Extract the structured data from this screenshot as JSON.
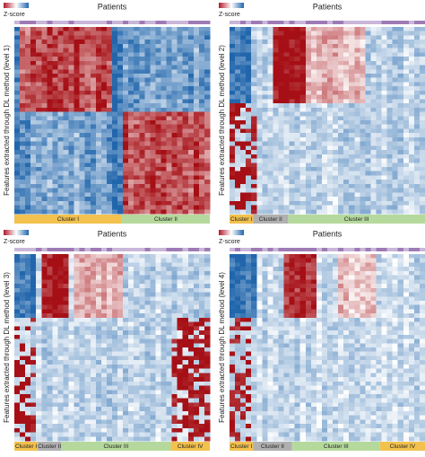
{
  "panels": [
    {
      "title": "Patients",
      "legend_label": "Z-score",
      "y_label": "Features extracted through DL method (level 1)",
      "clusters": [
        "Cluster I",
        "Cluster II"
      ]
    },
    {
      "title": "Patients",
      "legend_label": "Z-score",
      "y_label": "Features extracted through DL method (level 2)",
      "clusters": [
        "Cluster I",
        "Cluster II",
        "Cluster III"
      ]
    },
    {
      "title": "Patients",
      "legend_label": "Z-score",
      "y_label": "Features extracted through DL method (level 3)",
      "clusters": [
        "Cluster I",
        "Cluster II",
        "Cluster III",
        "Cluster IV"
      ]
    },
    {
      "title": "Patients",
      "legend_label": "Z-score",
      "y_label": "Features extracted through DL method (level 4)",
      "clusters": [
        "Cluster I",
        "Cluster II",
        "Cluster III",
        "Cluster IV"
      ]
    }
  ]
}
